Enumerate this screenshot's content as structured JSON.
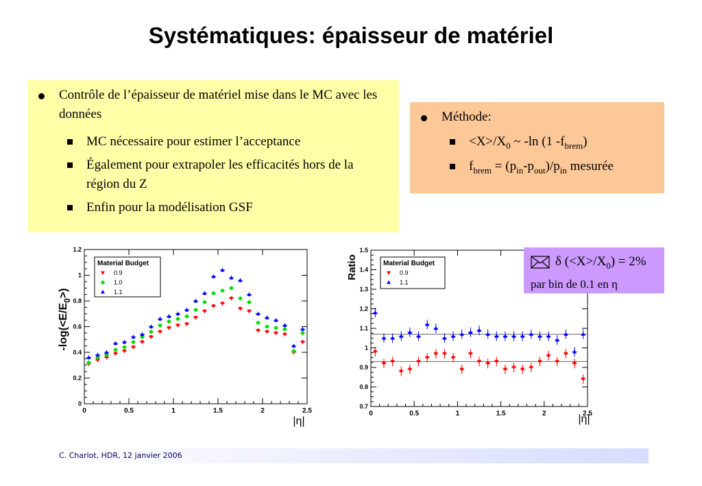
{
  "slide": {
    "title": "Systématiques: épaisseur de matériel",
    "left_box": {
      "main": "Contrôle de l’épaisseur de matériel mise dans le MC avec les données",
      "items": [
        "MC nécessaire pour estimer l’acceptance",
        "Également pour extrapoler les efficacités hors de la région du Z",
        "Enfin pour  la modélisation GSF"
      ]
    },
    "right_box": {
      "main": "Méthode:",
      "item1": {
        "a": "<X>/X",
        "sub0": "0",
        "b": " ~ -ln (1 -f",
        "sub1": "brem",
        "c": ")"
      },
      "item2": {
        "a": "f",
        "sub1": "brem",
        "b": " = (p",
        "sub2": "in",
        "c": "-p",
        "sub3": "out",
        "d": ")/p",
        "sub4": "in",
        "e": " mesurée"
      }
    },
    "note": {
      "l1a": "δ (<X>/X",
      "l1sub": "0",
      "l1b": ") = 2%",
      "l2": "par bin de 0.1 en η",
      "icon": "envelope-icon"
    },
    "footer": "C. Charlot, HDR, 12 janvier 2006"
  },
  "chart_data": [
    {
      "type": "scatter",
      "ylabel": "-log(<E/E",
      "ylabel_sub": "0",
      "ylabel_end": ">)",
      "xlabel": "|η|",
      "xlim": [
        0,
        2.5
      ],
      "ylim": [
        0,
        1.2
      ],
      "xticks": [
        "0",
        "0.5",
        "1",
        "1.5",
        "2",
        "2.5"
      ],
      "yticks": [
        "0",
        "0.2",
        "0.4",
        "0.6",
        "0.8",
        "1",
        "1.2"
      ],
      "legend_title": "Material Budget",
      "legend_position": "top-left",
      "x": [
        0.05,
        0.15,
        0.25,
        0.35,
        0.45,
        0.55,
        0.65,
        0.75,
        0.85,
        0.95,
        1.05,
        1.15,
        1.25,
        1.35,
        1.45,
        1.55,
        1.65,
        1.75,
        1.85,
        1.95,
        2.05,
        2.15,
        2.25,
        2.35,
        2.45
      ],
      "series": [
        {
          "name": "0.9",
          "color": "#ff0000",
          "marker": "triangle-down",
          "values": [
            0.31,
            0.34,
            0.36,
            0.39,
            0.41,
            0.44,
            0.48,
            0.52,
            0.56,
            0.59,
            0.61,
            0.62,
            0.67,
            0.72,
            0.76,
            0.78,
            0.82,
            0.74,
            0.72,
            0.57,
            0.56,
            0.55,
            0.54,
            0.4,
            0.48
          ]
        },
        {
          "name": "1.0",
          "color": "#00dd00",
          "marker": "circle",
          "values": [
            0.32,
            0.36,
            0.38,
            0.42,
            0.44,
            0.48,
            0.52,
            0.56,
            0.61,
            0.64,
            0.66,
            0.68,
            0.73,
            0.79,
            0.86,
            0.88,
            0.9,
            0.82,
            0.79,
            0.63,
            0.6,
            0.59,
            0.58,
            0.41,
            0.55
          ]
        },
        {
          "name": "1.1",
          "color": "#0000ff",
          "marker": "triangle-up",
          "values": [
            0.36,
            0.38,
            0.4,
            0.47,
            0.48,
            0.52,
            0.54,
            0.6,
            0.66,
            0.68,
            0.7,
            0.73,
            0.8,
            0.86,
            0.99,
            1.04,
            0.98,
            0.96,
            0.85,
            0.7,
            0.67,
            0.65,
            0.61,
            0.45,
            0.58
          ]
        }
      ]
    },
    {
      "type": "scatter",
      "ylabel": "Ratio",
      "xlabel": "|η|",
      "xlim": [
        0,
        2.5
      ],
      "ylim": [
        0.7,
        1.5
      ],
      "xticks": [
        "0",
        "0.5",
        "1",
        "1.5",
        "2",
        "2.5"
      ],
      "yticks": [
        "0.7",
        "0.8",
        "0.9",
        "1",
        "1.1",
        "1.2",
        "1.3",
        "1.4",
        "1.5"
      ],
      "legend_title": "Material Budget",
      "legend_position": "top-left",
      "reference_lines": [
        0.93,
        1.07
      ],
      "x": [
        0.05,
        0.15,
        0.25,
        0.35,
        0.45,
        0.55,
        0.65,
        0.75,
        0.85,
        0.95,
        1.05,
        1.15,
        1.25,
        1.35,
        1.45,
        1.55,
        1.65,
        1.75,
        1.85,
        1.95,
        2.05,
        2.15,
        2.25,
        2.35,
        2.45
      ],
      "series": [
        {
          "name": "0.9",
          "color": "#ff0000",
          "marker": "triangle-down",
          "values": [
            0.98,
            0.92,
            0.93,
            0.88,
            0.89,
            0.93,
            0.95,
            0.97,
            0.97,
            0.95,
            0.89,
            0.97,
            0.93,
            0.92,
            0.93,
            0.89,
            0.9,
            0.89,
            0.9,
            0.93,
            0.96,
            0.93,
            0.97,
            0.92,
            0.84
          ]
        },
        {
          "name": "1.1",
          "color": "#0000ff",
          "marker": "triangle-up",
          "values": [
            1.18,
            1.05,
            1.05,
            1.06,
            1.08,
            1.06,
            1.12,
            1.1,
            1.05,
            1.06,
            1.07,
            1.08,
            1.09,
            1.07,
            1.06,
            1.06,
            1.06,
            1.06,
            1.07,
            1.06,
            1.06,
            1.04,
            1.07,
            0.98,
            1.07
          ]
        }
      ]
    }
  ]
}
